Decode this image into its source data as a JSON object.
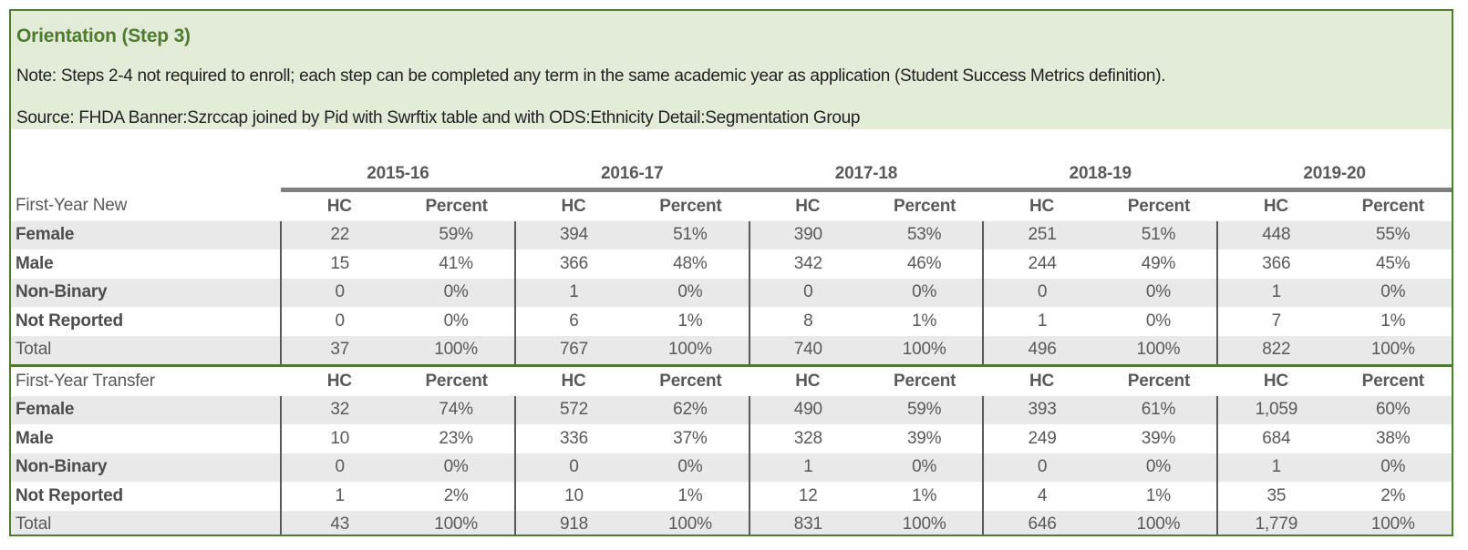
{
  "header": {
    "title": "Orientation (Step 3)",
    "note": "Note: Steps 2-4 not required to enroll; each step can be completed any term in the same academic year as application (Student Success Metrics definition).",
    "source": "Source: FHDA Banner:Szrccap joined by Pid with Swrftix table and with ODS:Ethnicity Detail:Segmentation Group"
  },
  "table": {
    "years": [
      "2015-16",
      "2016-17",
      "2017-18",
      "2018-19",
      "2019-20"
    ],
    "value_headers": [
      "HC",
      "Percent"
    ],
    "sections": [
      {
        "label": "First-Year New",
        "rows": [
          {
            "label": "Female",
            "bold": true,
            "cells": [
              "22",
              "59%",
              "394",
              "51%",
              "390",
              "53%",
              "251",
              "51%",
              "448",
              "55%"
            ]
          },
          {
            "label": "Male",
            "bold": true,
            "cells": [
              "15",
              "41%",
              "366",
              "48%",
              "342",
              "46%",
              "244",
              "49%",
              "366",
              "45%"
            ]
          },
          {
            "label": "Non-Binary",
            "bold": true,
            "cells": [
              "0",
              "0%",
              "1",
              "0%",
              "0",
              "0%",
              "0",
              "0%",
              "1",
              "0%"
            ]
          },
          {
            "label": "Not Reported",
            "bold": true,
            "cells": [
              "0",
              "0%",
              "6",
              "1%",
              "8",
              "1%",
              "1",
              "0%",
              "7",
              "1%"
            ]
          },
          {
            "label": "Total",
            "bold": false,
            "cells": [
              "37",
              "100%",
              "767",
              "100%",
              "740",
              "100%",
              "496",
              "100%",
              "822",
              "100%"
            ]
          }
        ]
      },
      {
        "label": "First-Year Transfer",
        "rows": [
          {
            "label": "Female",
            "bold": true,
            "cells": [
              "32",
              "74%",
              "572",
              "62%",
              "490",
              "59%",
              "393",
              "61%",
              "1,059",
              "60%"
            ]
          },
          {
            "label": "Male",
            "bold": true,
            "cells": [
              "10",
              "23%",
              "336",
              "37%",
              "328",
              "39%",
              "249",
              "39%",
              "684",
              "38%"
            ]
          },
          {
            "label": "Non-Binary",
            "bold": true,
            "cells": [
              "0",
              "0%",
              "0",
              "0%",
              "1",
              "0%",
              "0",
              "0%",
              "1",
              "0%"
            ]
          },
          {
            "label": "Not Reported",
            "bold": true,
            "cells": [
              "1",
              "2%",
              "10",
              "1%",
              "12",
              "1%",
              "4",
              "1%",
              "35",
              "2%"
            ]
          },
          {
            "label": "Total",
            "bold": false,
            "cells": [
              "43",
              "100%",
              "918",
              "100%",
              "831",
              "100%",
              "646",
              "100%",
              "1,779",
              "100%"
            ]
          }
        ]
      }
    ]
  },
  "colors": {
    "accent_green": "#4f7b31",
    "title_green": "#4e7b2f",
    "header_bg": "#e3ecd8",
    "text_gray": "#595959",
    "label_gray": "#4d4d4d",
    "stripe_gray": "#e9e9e9",
    "thick_rule_gray": "#808080",
    "divider_gray": "#595959",
    "body_text": "#212121"
  }
}
